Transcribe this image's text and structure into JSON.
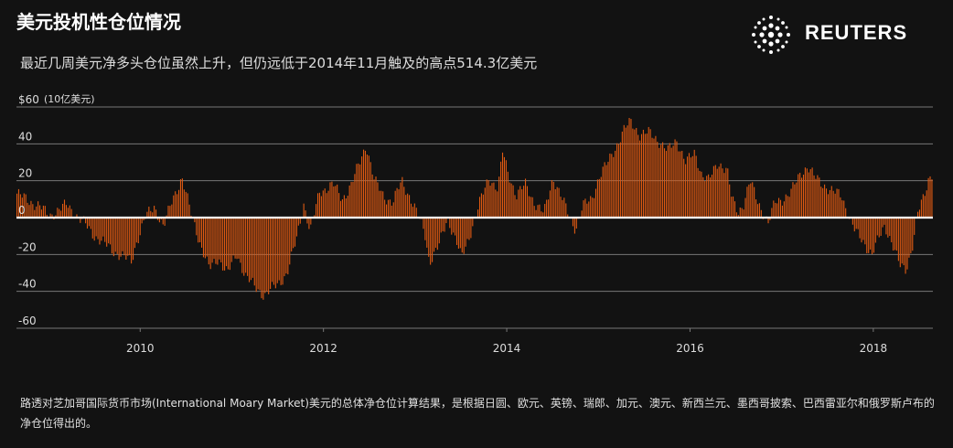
{
  "title": "美元投机性仓位情况",
  "subtitle": "最近几周美元净多头仓位虽然上升，但仍远低于2014年11月触及的高点514.3亿美元",
  "logo": {
    "text": "REUTERS"
  },
  "footnote": "路透对芝加哥国际货币市场(International Moary Market)美元的总体净仓位计算结果，是根据日圆、欧元、英镑、瑞郎、加元、澳元、新西兰元、墨西哥披索、巴西雷亚尔和俄罗斯卢布的净仓位得出的。",
  "colors": {
    "bar": "#e05a12",
    "background": "#121212",
    "grid": "#777777",
    "zero": "#ffffff",
    "text": "#dddddd"
  },
  "chart_data": {
    "type": "bar",
    "unit_label": "(10亿美元)",
    "ylim": [
      -60,
      60
    ],
    "yticks": [
      {
        "value": 60,
        "label": "$60"
      },
      {
        "value": 40,
        "label": "40"
      },
      {
        "value": 20,
        "label": "20"
      },
      {
        "value": 0,
        "label": "0"
      },
      {
        "value": -20,
        "label": "-20"
      },
      {
        "value": -40,
        "label": "-40"
      },
      {
        "value": -60,
        "label": "-60"
      }
    ],
    "xlim": [
      2008.65,
      2018.65
    ],
    "xticks": [
      {
        "value": 2010,
        "label": "2010"
      },
      {
        "value": 2012,
        "label": "2012"
      },
      {
        "value": 2014,
        "label": "2014"
      },
      {
        "value": 2016,
        "label": "2016"
      },
      {
        "value": 2018,
        "label": "2018"
      }
    ],
    "grid": true,
    "legend": "none",
    "x_step": 0.0192,
    "keypoints": [
      [
        2008.65,
        13
      ],
      [
        2008.75,
        10
      ],
      [
        2008.9,
        6
      ],
      [
        2009.0,
        1
      ],
      [
        2009.1,
        4
      ],
      [
        2009.2,
        7
      ],
      [
        2009.3,
        1
      ],
      [
        2009.4,
        -4
      ],
      [
        2009.5,
        -10
      ],
      [
        2009.6,
        -14
      ],
      [
        2009.7,
        -18
      ],
      [
        2009.8,
        -21
      ],
      [
        2009.9,
        -24
      ],
      [
        2009.95,
        -14
      ],
      [
        2010.05,
        0
      ],
      [
        2010.15,
        6
      ],
      [
        2010.25,
        -5
      ],
      [
        2010.35,
        10
      ],
      [
        2010.45,
        22
      ],
      [
        2010.55,
        2
      ],
      [
        2010.65,
        -14
      ],
      [
        2010.75,
        -28
      ],
      [
        2010.85,
        -22
      ],
      [
        2010.95,
        -30
      ],
      [
        2011.05,
        -20
      ],
      [
        2011.15,
        -32
      ],
      [
        2011.25,
        -38
      ],
      [
        2011.35,
        -42
      ],
      [
        2011.5,
        -36
      ],
      [
        2011.6,
        -30
      ],
      [
        2011.7,
        -12
      ],
      [
        2011.78,
        8
      ],
      [
        2011.85,
        -8
      ],
      [
        2011.95,
        14
      ],
      [
        2012.1,
        18
      ],
      [
        2012.2,
        10
      ],
      [
        2012.3,
        18
      ],
      [
        2012.42,
        34
      ],
      [
        2012.46,
        40
      ],
      [
        2012.55,
        20
      ],
      [
        2012.65,
        12
      ],
      [
        2012.75,
        8
      ],
      [
        2012.85,
        20
      ],
      [
        2012.95,
        10
      ],
      [
        2013.1,
        -8
      ],
      [
        2013.15,
        -24
      ],
      [
        2013.25,
        -16
      ],
      [
        2013.35,
        0
      ],
      [
        2013.45,
        -14
      ],
      [
        2013.5,
        -22
      ],
      [
        2013.6,
        -8
      ],
      [
        2013.7,
        8
      ],
      [
        2013.8,
        22
      ],
      [
        2013.9,
        15
      ],
      [
        2013.95,
        36
      ],
      [
        2014.0,
        26
      ],
      [
        2014.1,
        12
      ],
      [
        2014.2,
        18
      ],
      [
        2014.3,
        8
      ],
      [
        2014.4,
        2
      ],
      [
        2014.5,
        22
      ],
      [
        2014.6,
        10
      ],
      [
        2014.7,
        -2
      ],
      [
        2014.75,
        -6
      ],
      [
        2014.82,
        6
      ],
      [
        2014.92,
        10
      ],
      [
        2015.0,
        22
      ],
      [
        2015.1,
        30
      ],
      [
        2015.2,
        40
      ],
      [
        2015.28,
        48
      ],
      [
        2015.35,
        52
      ],
      [
        2015.45,
        45
      ],
      [
        2015.55,
        46
      ],
      [
        2015.65,
        42
      ],
      [
        2015.75,
        36
      ],
      [
        2015.85,
        42
      ],
      [
        2015.95,
        30
      ],
      [
        2016.05,
        35
      ],
      [
        2016.12,
        24
      ],
      [
        2016.2,
        20
      ],
      [
        2016.3,
        30
      ],
      [
        2016.4,
        26
      ],
      [
        2016.45,
        10
      ],
      [
        2016.52,
        3
      ],
      [
        2016.58,
        8
      ],
      [
        2016.65,
        20
      ],
      [
        2016.72,
        10
      ],
      [
        2016.78,
        4
      ],
      [
        2016.85,
        -3
      ],
      [
        2016.92,
        8
      ],
      [
        2017.0,
        10
      ],
      [
        2017.1,
        14
      ],
      [
        2017.2,
        24
      ],
      [
        2017.28,
        28
      ],
      [
        2017.35,
        22
      ],
      [
        2017.45,
        18
      ],
      [
        2017.55,
        14
      ],
      [
        2017.65,
        12
      ],
      [
        2017.72,
        2
      ],
      [
        2017.8,
        -8
      ],
      [
        2017.9,
        -14
      ],
      [
        2017.98,
        -20
      ],
      [
        2018.05,
        -12
      ],
      [
        2018.12,
        -4
      ],
      [
        2018.2,
        -14
      ],
      [
        2018.28,
        -26
      ],
      [
        2018.35,
        -28
      ],
      [
        2018.42,
        -16
      ],
      [
        2018.48,
        2
      ],
      [
        2018.55,
        12
      ],
      [
        2018.6,
        22
      ],
      [
        2018.65,
        25
      ]
    ]
  }
}
